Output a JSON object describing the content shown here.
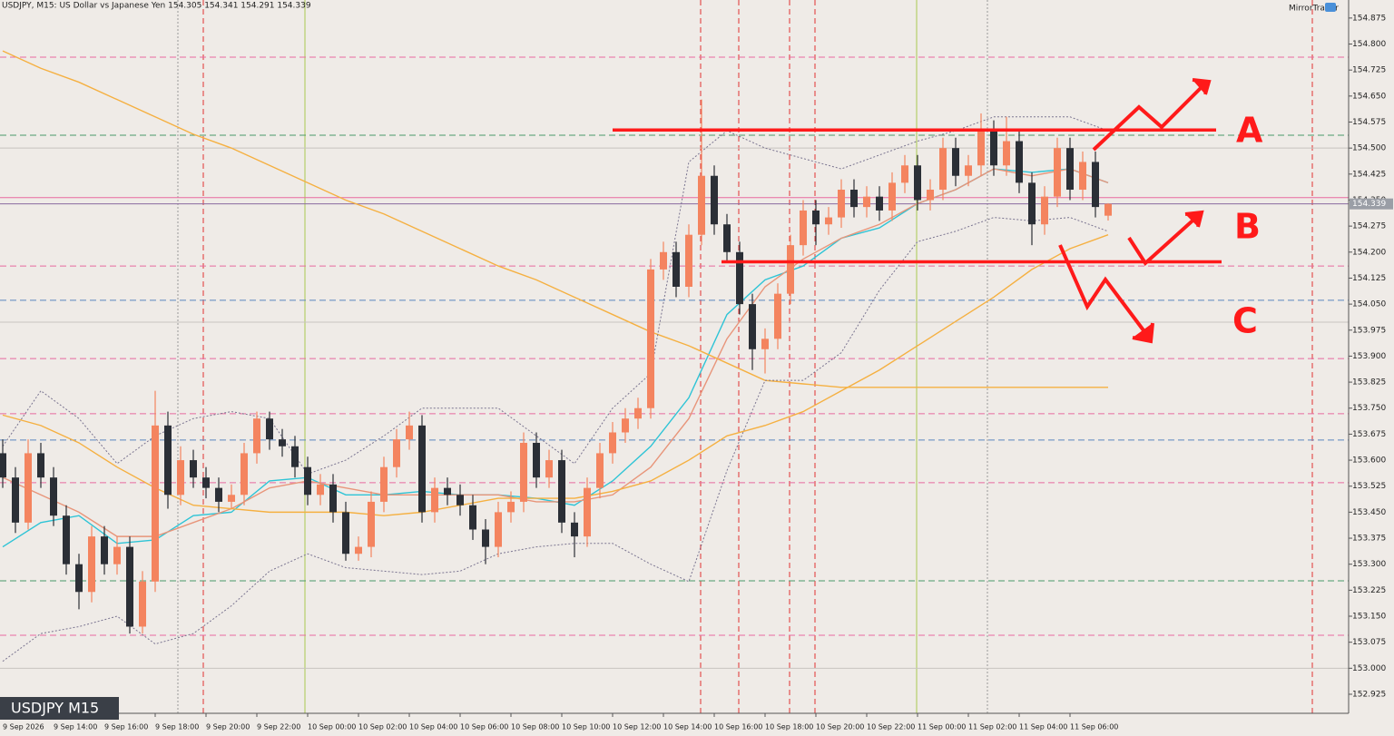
{
  "chart_data": {
    "type": "candlestick",
    "header": "USDJPY, M15:  US Dollar vs Japanese Yen  154.305 154.341 154.291 154.339",
    "brand": "MirrorTrader",
    "watermark": "USDJPY M15",
    "categories": [
      "9 Sep 2026",
      "9 Sep 14:00",
      "9 Sep 16:00",
      "9 Sep 18:00",
      "9 Sep 20:00",
      "9 Sep 22:00",
      "10 Sep 00:00",
      "10 Sep 02:00",
      "10 Sep 04:00",
      "10 Sep 06:00",
      "10 Sep 08:00",
      "10 Sep 10:00",
      "10 Sep 12:00",
      "10 Sep 14:00",
      "10 Sep 16:00",
      "10 Sep 18:00",
      "10 Sep 20:00",
      "10 Sep 22:00",
      "11 Sep 00:00",
      "11 Sep 02:00",
      "11 Sep 04:00",
      "11 Sep 06:00"
    ],
    "candles": [
      [
        153.62,
        153.66,
        153.52,
        153.55
      ],
      [
        153.55,
        153.58,
        153.39,
        153.42
      ],
      [
        153.42,
        153.66,
        153.4,
        153.62
      ],
      [
        153.62,
        153.65,
        153.52,
        153.55
      ],
      [
        153.55,
        153.58,
        153.41,
        153.44
      ],
      [
        153.44,
        153.47,
        153.27,
        153.3
      ],
      [
        153.3,
        153.33,
        153.17,
        153.22
      ],
      [
        153.22,
        153.41,
        153.19,
        153.38
      ],
      [
        153.38,
        153.41,
        153.27,
        153.3
      ],
      [
        153.3,
        153.38,
        153.27,
        153.35
      ],
      [
        153.35,
        153.38,
        153.1,
        153.12
      ],
      [
        153.12,
        153.28,
        153.1,
        153.25
      ],
      [
        153.25,
        153.8,
        153.22,
        153.7
      ],
      [
        153.7,
        153.74,
        153.46,
        153.5
      ],
      [
        153.5,
        153.64,
        153.47,
        153.6
      ],
      [
        153.6,
        153.63,
        153.52,
        153.55
      ],
      [
        153.55,
        153.58,
        153.49,
        153.52
      ],
      [
        153.52,
        153.55,
        153.45,
        153.48
      ],
      [
        153.48,
        153.53,
        153.46,
        153.5
      ],
      [
        153.5,
        153.65,
        153.47,
        153.62
      ],
      [
        153.62,
        153.74,
        153.59,
        153.72
      ],
      [
        153.72,
        153.74,
        153.63,
        153.66
      ],
      [
        153.66,
        153.69,
        153.61,
        153.64
      ],
      [
        153.64,
        153.67,
        153.55,
        153.58
      ],
      [
        153.58,
        153.61,
        153.47,
        153.5
      ],
      [
        153.5,
        153.56,
        153.47,
        153.53
      ],
      [
        153.53,
        153.56,
        153.42,
        153.45
      ],
      [
        153.45,
        153.48,
        153.31,
        153.33
      ],
      [
        153.33,
        153.38,
        153.31,
        153.35
      ],
      [
        153.35,
        153.51,
        153.32,
        153.48
      ],
      [
        153.48,
        153.61,
        153.45,
        153.58
      ],
      [
        153.58,
        153.69,
        153.55,
        153.66
      ],
      [
        153.66,
        153.74,
        153.63,
        153.7
      ],
      [
        153.7,
        153.73,
        153.42,
        153.45
      ],
      [
        153.45,
        153.55,
        153.42,
        153.52
      ],
      [
        153.52,
        153.55,
        153.47,
        153.5
      ],
      [
        153.5,
        153.53,
        153.44,
        153.47
      ],
      [
        153.47,
        153.5,
        153.37,
        153.4
      ],
      [
        153.4,
        153.43,
        153.3,
        153.35
      ],
      [
        153.35,
        153.48,
        153.32,
        153.45
      ],
      [
        153.45,
        153.51,
        153.42,
        153.48
      ],
      [
        153.48,
        153.68,
        153.45,
        153.65
      ],
      [
        153.65,
        153.68,
        153.52,
        153.55
      ],
      [
        153.55,
        153.63,
        153.52,
        153.6
      ],
      [
        153.6,
        153.63,
        153.39,
        153.42
      ],
      [
        153.42,
        153.45,
        153.32,
        153.38
      ],
      [
        153.38,
        153.55,
        153.35,
        153.52
      ],
      [
        153.52,
        153.65,
        153.49,
        153.62
      ],
      [
        153.62,
        153.71,
        153.59,
        153.68
      ],
      [
        153.68,
        153.75,
        153.65,
        153.72
      ],
      [
        153.72,
        153.78,
        153.69,
        153.75
      ],
      [
        153.75,
        154.18,
        153.72,
        154.15
      ],
      [
        154.15,
        154.23,
        154.12,
        154.2
      ],
      [
        154.2,
        154.23,
        154.07,
        154.1
      ],
      [
        154.1,
        154.28,
        154.07,
        154.25
      ],
      [
        154.25,
        154.64,
        154.22,
        154.42
      ],
      [
        154.42,
        154.45,
        154.25,
        154.28
      ],
      [
        154.28,
        154.31,
        154.17,
        154.2
      ],
      [
        154.2,
        154.23,
        154.02,
        154.05
      ],
      [
        154.05,
        154.08,
        153.86,
        153.92
      ],
      [
        153.92,
        153.98,
        153.85,
        153.95
      ],
      [
        153.95,
        154.11,
        153.92,
        154.08
      ],
      [
        154.08,
        154.25,
        154.05,
        154.22
      ],
      [
        154.22,
        154.35,
        154.19,
        154.32
      ],
      [
        154.32,
        154.35,
        154.22,
        154.28
      ],
      [
        154.28,
        154.33,
        154.25,
        154.3
      ],
      [
        154.3,
        154.41,
        154.27,
        154.38
      ],
      [
        154.38,
        154.41,
        154.3,
        154.33
      ],
      [
        154.33,
        154.39,
        154.3,
        154.36
      ],
      [
        154.36,
        154.39,
        154.29,
        154.32
      ],
      [
        154.32,
        154.43,
        154.29,
        154.4
      ],
      [
        154.4,
        154.48,
        154.37,
        154.45
      ],
      [
        154.45,
        154.48,
        154.32,
        154.35
      ],
      [
        154.35,
        154.41,
        154.32,
        154.38
      ],
      [
        154.38,
        154.53,
        154.35,
        154.5
      ],
      [
        154.5,
        154.53,
        154.39,
        154.42
      ],
      [
        154.42,
        154.48,
        154.39,
        154.45
      ],
      [
        154.45,
        154.6,
        154.42,
        154.55
      ],
      [
        154.55,
        154.58,
        154.42,
        154.45
      ],
      [
        154.45,
        154.59,
        154.42,
        154.52
      ],
      [
        154.52,
        154.55,
        154.37,
        154.4
      ],
      [
        154.4,
        154.43,
        154.22,
        154.28
      ],
      [
        154.28,
        154.39,
        154.25,
        154.36
      ],
      [
        154.36,
        154.53,
        154.33,
        154.5
      ],
      [
        154.5,
        154.53,
        154.35,
        154.38
      ],
      [
        154.38,
        154.49,
        154.35,
        154.46
      ],
      [
        154.46,
        154.49,
        154.3,
        154.33
      ],
      [
        154.305,
        154.341,
        154.291,
        154.339
      ]
    ],
    "bull_color": "#f4845f",
    "bear_color": "#2b2f36",
    "indicators": [
      {
        "color": "#2ec4d6",
        "style": "solid",
        "values": [
          153.35,
          153.42,
          153.44,
          153.36,
          153.37,
          153.44,
          153.45,
          153.54,
          153.55,
          153.5,
          153.5,
          153.51,
          153.5,
          153.5,
          153.49,
          153.47,
          153.54,
          153.64,
          153.78,
          154.02,
          154.12,
          154.16,
          154.24,
          154.27,
          154.34,
          154.38,
          154.44,
          154.43,
          154.44,
          154.4
        ]
      },
      {
        "color": "#e8957a",
        "style": "solid",
        "values": [
          153.55,
          153.5,
          153.45,
          153.38,
          153.38,
          153.42,
          153.46,
          153.52,
          153.54,
          153.52,
          153.5,
          153.5,
          153.5,
          153.5,
          153.48,
          153.48,
          153.5,
          153.58,
          153.72,
          153.95,
          154.1,
          154.18,
          154.24,
          154.28,
          154.34,
          154.38,
          154.44,
          154.42,
          154.44,
          154.4
        ]
      },
      {
        "color": "#f5b041",
        "style": "solid",
        "values": [
          153.73,
          153.7,
          153.65,
          153.58,
          153.52,
          153.47,
          153.46,
          153.45,
          153.45,
          153.45,
          153.44,
          153.45,
          153.47,
          153.49,
          153.49,
          153.49,
          153.51,
          153.54,
          153.6,
          153.67,
          153.7,
          153.74,
          153.8,
          153.86,
          153.93,
          154.0,
          154.07,
          154.15,
          154.21,
          154.25
        ]
      },
      {
        "color": "#f5b041",
        "style": "solid",
        "values": [
          154.78,
          154.73,
          154.69,
          154.64,
          154.59,
          154.54,
          154.5,
          154.45,
          154.4,
          154.35,
          154.31,
          154.26,
          154.21,
          154.16,
          154.12,
          154.07,
          154.02,
          153.97,
          153.93,
          153.88,
          153.83,
          153.82,
          153.81,
          153.81,
          153.81,
          153.81,
          153.81,
          153.81,
          153.81,
          153.81
        ]
      },
      {
        "color": "#7a7490",
        "style": "dotted",
        "values": [
          153.64,
          153.8,
          153.72,
          153.59,
          153.67,
          153.72,
          153.74,
          153.72,
          153.56,
          153.6,
          153.67,
          153.75,
          153.75,
          153.75,
          153.67,
          153.59,
          153.75,
          153.85,
          154.46,
          154.55,
          154.5,
          154.47,
          154.44,
          154.48,
          154.52,
          154.55,
          154.59,
          154.59,
          154.59,
          154.55
        ]
      },
      {
        "color": "#7a7490",
        "style": "dotted",
        "values": [
          153.02,
          153.1,
          153.12,
          153.15,
          153.07,
          153.1,
          153.18,
          153.28,
          153.33,
          153.29,
          153.28,
          153.27,
          153.28,
          153.33,
          153.35,
          153.36,
          153.36,
          153.3,
          153.25,
          153.57,
          153.83,
          153.83,
          153.91,
          154.09,
          154.23,
          154.26,
          154.3,
          154.29,
          154.3,
          154.26
        ]
      }
    ],
    "levels": [
      {
        "value": 154.762,
        "color": "#e86aa0",
        "dashed": true
      },
      {
        "value": 154.537,
        "color": "#4a9a6a",
        "dashed": true
      },
      {
        "value": 154.5,
        "color": "#c8c4c0",
        "dashed": false
      },
      {
        "value": 154.357,
        "color": "#e86aa0",
        "dashed": false
      },
      {
        "value": 154.339,
        "color": "#8a6aa0",
        "dashed": false
      },
      {
        "value": 154.16,
        "color": "#e86aa0",
        "dashed": true
      },
      {
        "value": 154.061,
        "color": "#5a86c0",
        "dashed": true
      },
      {
        "value": 153.998,
        "color": "#c8c4c0",
        "dashed": false
      },
      {
        "value": 153.893,
        "color": "#e86aa0",
        "dashed": true
      },
      {
        "value": 153.734,
        "color": "#e86aa0",
        "dashed": true
      },
      {
        "value": 153.658,
        "color": "#5a86c0",
        "dashed": true
      },
      {
        "value": 153.535,
        "color": "#e86aa0",
        "dashed": true
      },
      {
        "value": 153.252,
        "color": "#4a9a6a",
        "dashed": true
      },
      {
        "value": 153.095,
        "color": "#e86aa0",
        "dashed": true
      },
      {
        "value": 153.0,
        "color": "#c8c4c0",
        "dashed": false
      }
    ],
    "annotations": {
      "labels": [
        "A",
        "B",
        "C"
      ],
      "levels": [
        154.552,
        154.172
      ],
      "color": "#ff1a1a"
    },
    "ylim": [
      152.87,
      154.927
    ],
    "yticks": [
      154.875,
      {
        "value": 154.8,
        "label": "154.800"
      },
      154.725,
      {
        "value": 154.65,
        "label": "154.650"
      },
      154.575,
      {
        "value": 154.5,
        "label": "154.500"
      },
      154.425,
      {
        "value": 154.35,
        "label": "154.350"
      },
      154.275,
      {
        "value": 154.2,
        "label": "154.200"
      },
      154.125,
      {
        "value": 154.05,
        "label": "154.050"
      },
      153.975,
      {
        "value": 153.9,
        "label": "153.900"
      },
      153.825,
      {
        "value": 153.75,
        "label": "153.750"
      },
      153.675,
      {
        "value": 153.6,
        "label": "153.600"
      },
      153.525,
      {
        "value": 153.45,
        "label": "153.450"
      },
      153.375,
      {
        "value": 153.3,
        "label": "153.300"
      },
      153.225,
      {
        "value": 153.15,
        "label": "153.150"
      },
      153.075,
      {
        "value": 153.0,
        "label": "153.000"
      },
      152.925
    ]
  }
}
